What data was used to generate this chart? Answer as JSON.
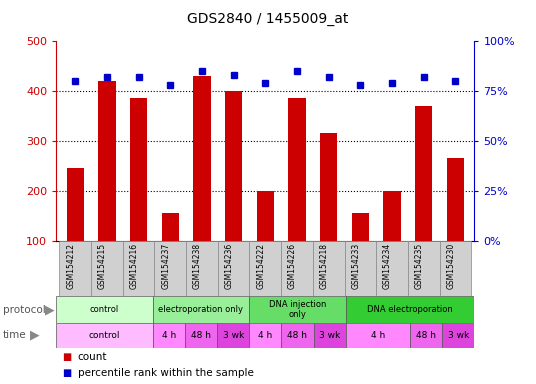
{
  "title": "GDS2840 / 1455009_at",
  "samples": [
    "GSM154212",
    "GSM154215",
    "GSM154216",
    "GSM154237",
    "GSM154238",
    "GSM154236",
    "GSM154222",
    "GSM154226",
    "GSM154218",
    "GSM154233",
    "GSM154234",
    "GSM154235",
    "GSM154230"
  ],
  "counts": [
    245,
    420,
    385,
    155,
    430,
    400,
    200,
    385,
    315,
    155,
    200,
    370,
    265
  ],
  "percentiles": [
    80,
    82,
    82,
    78,
    85,
    83,
    79,
    85,
    82,
    78,
    79,
    82,
    80
  ],
  "ylim_left": [
    100,
    500
  ],
  "ylim_right": [
    0,
    100
  ],
  "yticks_left": [
    100,
    200,
    300,
    400,
    500
  ],
  "yticks_right": [
    0,
    25,
    50,
    75,
    100
  ],
  "bar_color": "#cc0000",
  "dot_color": "#0000cc",
  "protocol_data": [
    {
      "text": "control",
      "start": 0,
      "end": 3,
      "color": "#ccffcc"
    },
    {
      "text": "electroporation only",
      "start": 3,
      "end": 6,
      "color": "#99ee99"
    },
    {
      "text": "DNA injection\nonly",
      "start": 6,
      "end": 9,
      "color": "#66dd66"
    },
    {
      "text": "DNA electroporation",
      "start": 9,
      "end": 13,
      "color": "#33cc33"
    }
  ],
  "time_data": [
    {
      "text": "control",
      "start": 0,
      "end": 3,
      "color": "#ffbbff"
    },
    {
      "text": "4 h",
      "start": 3,
      "end": 4,
      "color": "#ff88ff"
    },
    {
      "text": "48 h",
      "start": 4,
      "end": 5,
      "color": "#ee66ee"
    },
    {
      "text": "3 wk",
      "start": 5,
      "end": 6,
      "color": "#dd44dd"
    },
    {
      "text": "4 h",
      "start": 6,
      "end": 7,
      "color": "#ff88ff"
    },
    {
      "text": "48 h",
      "start": 7,
      "end": 8,
      "color": "#ee66ee"
    },
    {
      "text": "3 wk",
      "start": 8,
      "end": 9,
      "color": "#dd44dd"
    },
    {
      "text": "4 h",
      "start": 9,
      "end": 11,
      "color": "#ff88ff"
    },
    {
      "text": "48 h",
      "start": 11,
      "end": 12,
      "color": "#ee66ee"
    },
    {
      "text": "3 wk",
      "start": 12,
      "end": 13,
      "color": "#dd44dd"
    }
  ],
  "tick_label_color_left": "#cc0000",
  "tick_label_color_right": "#0000cc",
  "background_color": "#ffffff",
  "label_color_left": "protocol",
  "label_color_right": "time"
}
